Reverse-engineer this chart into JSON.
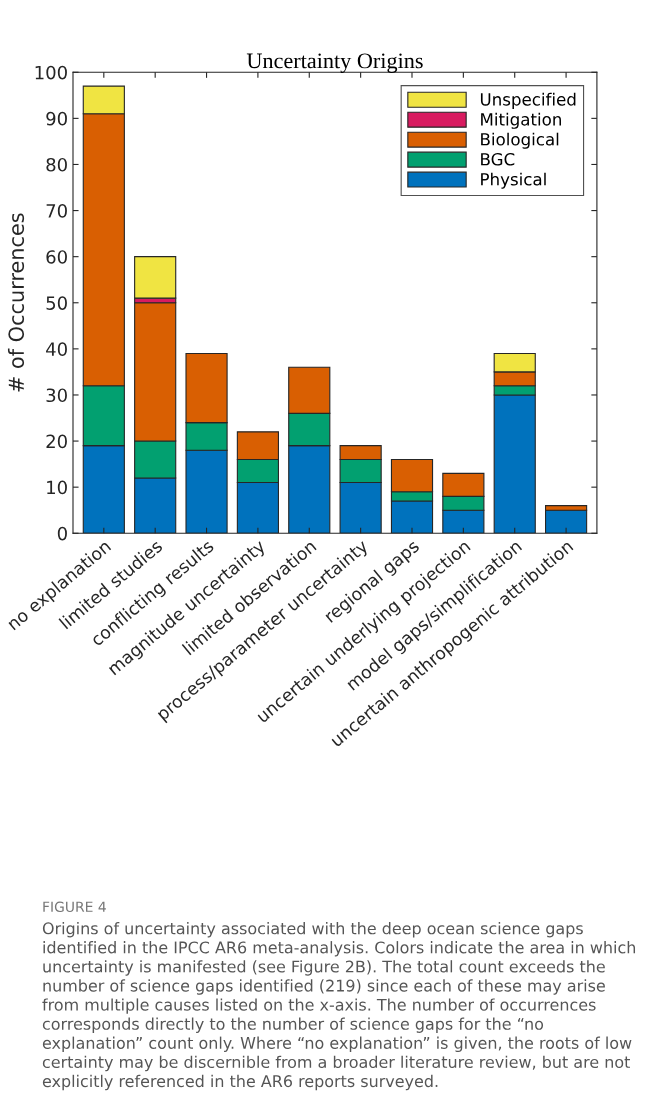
{
  "chart_data": {
    "type": "bar",
    "stacked": true,
    "title": "Uncertainty Origins",
    "ylabel": "# of Occurrences",
    "categories": [
      "no explanation",
      "limited studies",
      "conflicting results",
      "magnitude uncertainty",
      "limited observation",
      "process/parameter uncertainty",
      "regional gaps",
      "uncertain underlying projection",
      "model gaps/simplification",
      "uncertain anthropogenic attribution"
    ],
    "series": [
      {
        "name": "Physical",
        "color": "#0072bd",
        "values": [
          19,
          12,
          18,
          11,
          19,
          11,
          7,
          5,
          30,
          5
        ]
      },
      {
        "name": "BGC",
        "color": "#02a070",
        "values": [
          13,
          8,
          6,
          5,
          7,
          5,
          2,
          3,
          2,
          null
        ]
      },
      {
        "name": "Biological",
        "color": "#d95f02",
        "values": [
          59,
          30,
          15,
          6,
          10,
          3,
          7,
          5,
          3,
          1
        ]
      },
      {
        "name": "Mitigation",
        "color": "#d81b60",
        "values": [
          null,
          1,
          null,
          null,
          null,
          null,
          null,
          null,
          null,
          null
        ]
      },
      {
        "name": "Unspecified",
        "color": "#f0e442",
        "values": [
          6,
          9,
          null,
          null,
          null,
          null,
          null,
          null,
          4,
          null
        ]
      }
    ],
    "ylim": [
      0,
      100
    ],
    "yticks": [
      0,
      10,
      20,
      30,
      40,
      50,
      60,
      70,
      80,
      90,
      100
    ],
    "legend": "top right",
    "grid": false,
    "annotations": [
      "FIGURE 4",
      "Origins of uncertainty associated with the deep ocean science gaps identified in the IPCC AR6 meta-analysis. Colors indicate the area in which uncertainty is manifested (see Figure 2B). The total count exceeds the number of science gaps identified (219) since each of these may arise from multiple causes listed on the x-axis. The number of occurrences corresponds directly to the number of science gaps for the “no explanation” count only. Where “no explanation” is given, the roots of low certainty may be discernible from a broader literature review, but are not explicitly referenced in the AR6 reports surveyed."
    ]
  }
}
